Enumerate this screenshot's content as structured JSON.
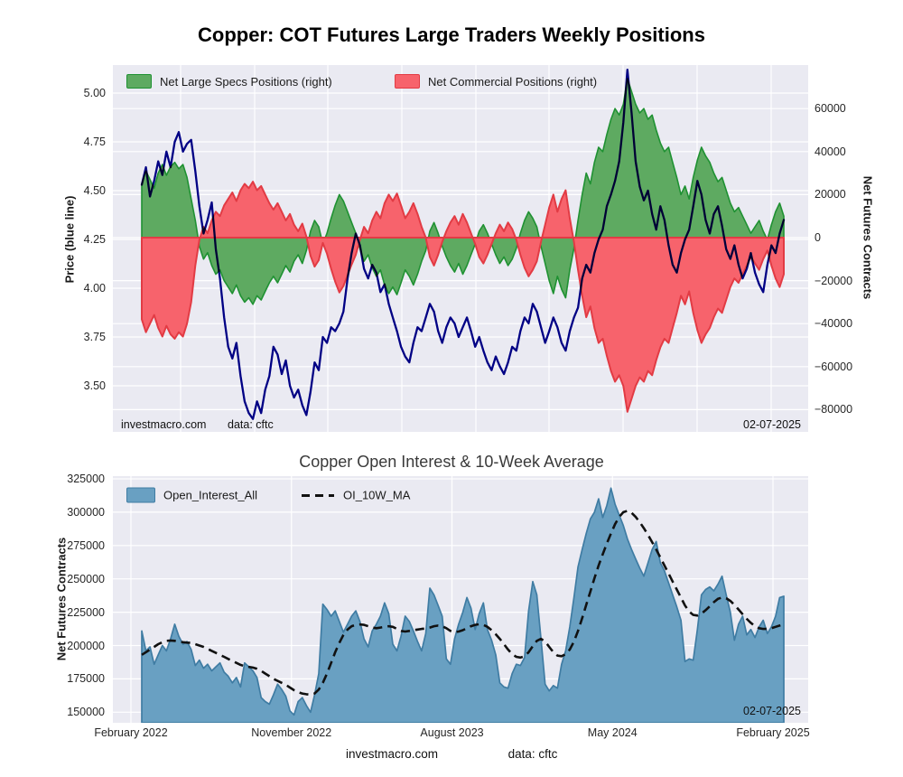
{
  "style": {
    "panel_bg": "#eaeaf2",
    "grid": "#ffffff",
    "specs_fill": "#5eaa61",
    "specs_edge": "#1f9132",
    "comms_fill": "#f7636c",
    "comms_edge": "#e23b44",
    "price_color": "#00008b",
    "oi_fill": "#69a0c2",
    "oi_edge": "#3f7ca3",
    "ma_color": "#111111"
  },
  "footer": {
    "source": "investmacro.com",
    "data": "data: cftc"
  },
  "chart_data": [
    {
      "type": "area+line",
      "title": "Copper: COT Futures Large Traders Weekly Positions",
      "x_tick_weeks": [
        0,
        39,
        78,
        117,
        156
      ],
      "n_weeks": 157,
      "grid": true,
      "legend_position": "upper-left",
      "y_left": {
        "label": "Price (blue line)",
        "ticks": [
          "5.00",
          "4.75",
          "4.50",
          "4.25",
          "4.00",
          "3.75",
          "3.50"
        ],
        "range": [
          3.31,
          5.14
        ]
      },
      "y_right": {
        "label": "Net Futures Contracts",
        "ticks": [
          "60000",
          "40000",
          "20000",
          "0",
          "−20000",
          "−40000",
          "−60000",
          "−80000"
        ],
        "range": [
          -91000,
          80000
        ]
      },
      "annotations": {
        "source": "investmacro.com",
        "data": "data: cftc",
        "date": "02-07-2025"
      },
      "series": [
        {
          "name": "Net Large Specs Positions (right)",
          "type": "area",
          "axis": "right",
          "color": "#5eaa61",
          "edge": "#1f9132",
          "values": [
            25000,
            31000,
            27000,
            23000,
            30000,
            34000,
            29000,
            33000,
            35000,
            32000,
            34000,
            28000,
            18000,
            8000,
            -4000,
            -10000,
            -7000,
            -13000,
            -17000,
            -15000,
            -20000,
            -23000,
            -26000,
            -22000,
            -27000,
            -30000,
            -28000,
            -31000,
            -27000,
            -29000,
            -25000,
            -21000,
            -18000,
            -21000,
            -17000,
            -13000,
            -16000,
            -11000,
            -8000,
            -12000,
            -6000,
            3000,
            8000,
            5000,
            -3000,
            2000,
            9000,
            15000,
            20000,
            17000,
            12000,
            7000,
            2000,
            -5000,
            -11000,
            -8000,
            -14000,
            -18000,
            -15000,
            -22000,
            -26000,
            -23000,
            -26500,
            -21000,
            -15000,
            -18000,
            -22000,
            -17000,
            -11000,
            -6000,
            3000,
            7000,
            2000,
            -4000,
            -9000,
            -13000,
            -16000,
            -12000,
            -17000,
            -13000,
            -8000,
            -3000,
            3000,
            6000,
            2000,
            -3000,
            -8000,
            -12000,
            -9000,
            -13000,
            -10000,
            -5000,
            2000,
            8000,
            12000,
            9000,
            5000,
            -4000,
            -12000,
            -20000,
            -26000,
            -18000,
            -24000,
            -28000,
            -15000,
            -5000,
            8000,
            20000,
            30000,
            25000,
            35000,
            42000,
            40000,
            48000,
            55000,
            60000,
            57000,
            62000,
            74000,
            68000,
            62000,
            58000,
            60000,
            55000,
            57000,
            50000,
            44000,
            40000,
            42000,
            35000,
            28000,
            20000,
            24000,
            18000,
            28000,
            36000,
            42000,
            38000,
            35000,
            30000,
            26000,
            28000,
            22000,
            16000,
            12000,
            14000,
            10000,
            6000,
            2000,
            5000,
            8000,
            3000,
            -1000,
            6000,
            12000,
            16000,
            10000
          ]
        },
        {
          "name": "Net Commercial Positions (right)",
          "type": "area",
          "axis": "right",
          "color": "#f7636c",
          "edge": "#e23b44",
          "values": [
            -38000,
            -44000,
            -40000,
            -36000,
            -42000,
            -46000,
            -41000,
            -45000,
            -47000,
            -44000,
            -46000,
            -40000,
            -30000,
            -13000,
            -1000,
            5000,
            2000,
            8000,
            12000,
            10000,
            15000,
            18000,
            21000,
            17000,
            22000,
            25000,
            23000,
            26000,
            22000,
            24000,
            20000,
            16000,
            13000,
            16000,
            12000,
            8000,
            11000,
            6000,
            3000,
            6500,
            500,
            -8500,
            -13500,
            -10500,
            -2500,
            -7500,
            -14500,
            -20500,
            -25500,
            -22500,
            -17500,
            -12500,
            -8000,
            -1000,
            5000,
            2000,
            8000,
            12000,
            9000,
            16000,
            20000,
            17000,
            20500,
            15000,
            9000,
            12000,
            16000,
            11000,
            5000,
            0,
            -9000,
            -13000,
            -8000,
            -2000,
            3000,
            7000,
            10000,
            6000,
            11000,
            7000,
            2000,
            -3000,
            -9000,
            -12000,
            -8000,
            -3000,
            2000,
            6000,
            3000,
            7000,
            4000,
            -1000,
            -8000,
            -14000,
            -18000,
            -15000,
            -11000,
            -2000,
            6000,
            14000,
            20000,
            12000,
            18000,
            22000,
            9000,
            -2000,
            -15000,
            -27000,
            -37000,
            -32000,
            -42000,
            -49000,
            -47000,
            -55000,
            -62000,
            -67000,
            -64000,
            -69000,
            -81000,
            -75000,
            -69000,
            -65000,
            -67000,
            -62000,
            -64000,
            -57000,
            -51000,
            -47000,
            -49000,
            -42000,
            -35000,
            -27000,
            -31000,
            -25000,
            -35000,
            -43000,
            -49000,
            -45000,
            -42000,
            -37000,
            -33000,
            -35000,
            -29000,
            -23000,
            -19000,
            -21000,
            -17000,
            -13000,
            -9000,
            -12000,
            -15000,
            -10000,
            -6000,
            -13000,
            -19000,
            -23000,
            -17000
          ]
        },
        {
          "name": "Price (blue line)",
          "type": "line",
          "axis": "left",
          "color": "#00008b",
          "values": [
            4.53,
            4.62,
            4.47,
            4.55,
            4.65,
            4.58,
            4.7,
            4.62,
            4.75,
            4.8,
            4.7,
            4.74,
            4.76,
            4.6,
            4.42,
            4.28,
            4.35,
            4.44,
            4.2,
            4.05,
            3.85,
            3.7,
            3.64,
            3.72,
            3.55,
            3.42,
            3.36,
            3.33,
            3.42,
            3.36,
            3.48,
            3.55,
            3.7,
            3.66,
            3.56,
            3.63,
            3.5,
            3.44,
            3.48,
            3.4,
            3.35,
            3.47,
            3.62,
            3.58,
            3.75,
            3.72,
            3.8,
            3.78,
            3.82,
            3.88,
            4.05,
            4.18,
            4.28,
            4.22,
            4.1,
            4.05,
            4.12,
            4.08,
            3.98,
            4.02,
            3.92,
            3.85,
            3.78,
            3.7,
            3.65,
            3.62,
            3.72,
            3.8,
            3.78,
            3.85,
            3.92,
            3.88,
            3.78,
            3.72,
            3.8,
            3.85,
            3.82,
            3.75,
            3.8,
            3.85,
            3.78,
            3.7,
            3.75,
            3.68,
            3.62,
            3.58,
            3.65,
            3.6,
            3.56,
            3.62,
            3.7,
            3.68,
            3.78,
            3.85,
            3.82,
            3.92,
            3.88,
            3.8,
            3.72,
            3.78,
            3.85,
            3.8,
            3.72,
            3.68,
            3.78,
            3.85,
            3.9,
            4.05,
            4.12,
            4.08,
            4.18,
            4.25,
            4.3,
            4.42,
            4.48,
            4.55,
            4.65,
            4.85,
            5.12,
            4.9,
            4.65,
            4.52,
            4.45,
            4.5,
            4.38,
            4.3,
            4.42,
            4.35,
            4.22,
            4.12,
            4.08,
            4.18,
            4.25,
            4.3,
            4.42,
            4.55,
            4.48,
            4.35,
            4.28,
            4.38,
            4.42,
            4.32,
            4.2,
            4.15,
            4.22,
            4.12,
            4.05,
            4.1,
            4.18,
            4.08,
            4.02,
            3.98,
            4.12,
            4.22,
            4.18,
            4.28,
            4.35
          ]
        }
      ]
    },
    {
      "type": "area+line",
      "title": "Copper Open Interest & 10-Week Average",
      "x_tick_labels": [
        "February 2022",
        "November 2022",
        "August 2023",
        "May 2024",
        "February 2025"
      ],
      "x_tick_weeks": [
        0,
        39,
        78,
        117,
        156
      ],
      "n_weeks": 157,
      "grid": true,
      "legend_position": "upper-left",
      "y_left": {
        "label": "Net Futures Contracts",
        "ticks": [
          "325000",
          "300000",
          "275000",
          "250000",
          "225000",
          "200000",
          "175000",
          "150000"
        ],
        "range": [
          142000,
          327000
        ]
      },
      "annotations": {
        "date": "02-07-2025"
      },
      "series": [
        {
          "name": "Open_Interest_All",
          "type": "area",
          "color": "#69a0c2",
          "edge": "#3f7ca3",
          "values": [
            211000,
            196000,
            199000,
            186000,
            193000,
            200000,
            196000,
            205000,
            216000,
            207000,
            201000,
            203000,
            197000,
            185000,
            189000,
            183000,
            186000,
            181000,
            184000,
            187000,
            180000,
            177000,
            172000,
            176000,
            169000,
            187000,
            184000,
            181000,
            176000,
            161000,
            158000,
            156000,
            163000,
            171000,
            167000,
            162000,
            151000,
            148000,
            158000,
            161000,
            155000,
            150000,
            163000,
            179000,
            231000,
            227000,
            222000,
            226000,
            218000,
            210000,
            216000,
            222000,
            226000,
            218000,
            205000,
            199000,
            211000,
            216000,
            222000,
            232000,
            224000,
            201000,
            196000,
            207000,
            222000,
            218000,
            211000,
            203000,
            196000,
            209000,
            243000,
            238000,
            230000,
            222000,
            190000,
            186000,
            205000,
            216000,
            225000,
            236000,
            228000,
            212000,
            224000,
            232000,
            212000,
            204000,
            193000,
            172000,
            169000,
            168000,
            179000,
            186000,
            185000,
            191000,
            226000,
            248000,
            238000,
            205000,
            171000,
            166000,
            170000,
            168000,
            186000,
            196000,
            214000,
            236000,
            259000,
            272000,
            284000,
            295000,
            300000,
            310000,
            296000,
            305000,
            318000,
            306000,
            298000,
            290000,
            280000,
            272000,
            265000,
            258000,
            252000,
            262000,
            272000,
            278000,
            262000,
            256000,
            247000,
            238000,
            229000,
            219000,
            188000,
            190000,
            189000,
            212000,
            238000,
            242000,
            244000,
            241000,
            246000,
            252000,
            238000,
            225000,
            204000,
            216000,
            222000,
            208000,
            212000,
            206000,
            214000,
            219000,
            209000,
            214000,
            222000,
            236000,
            237000
          ]
        },
        {
          "name": "OI_10W_MA",
          "type": "line",
          "style": "dashed",
          "color": "#111111",
          "values": [
            193000,
            195000,
            197000,
            199000,
            201000,
            202500,
            203500,
            203800,
            203500,
            203000,
            202500,
            202200,
            202000,
            201000,
            200000,
            199000,
            197500,
            196000,
            194500,
            193000,
            191500,
            190000,
            188500,
            187000,
            185500,
            184500,
            184000,
            183500,
            182500,
            181000,
            179000,
            177000,
            175000,
            173500,
            172000,
            170500,
            168500,
            166500,
            165000,
            164000,
            163500,
            163200,
            164000,
            167000,
            172000,
            179000,
            187000,
            195000,
            202000,
            208000,
            212000,
            214500,
            215500,
            215800,
            215500,
            214500,
            213500,
            213000,
            213500,
            214000,
            214500,
            214000,
            212500,
            211000,
            210500,
            211000,
            211500,
            212000,
            212500,
            212800,
            213500,
            214500,
            215000,
            214500,
            213000,
            211000,
            210000,
            210500,
            211500,
            213000,
            214500,
            215500,
            216000,
            215500,
            214000,
            211500,
            208500,
            205000,
            201000,
            197000,
            193500,
            191500,
            191000,
            192000,
            195000,
            199500,
            203500,
            205000,
            203000,
            199000,
            195000,
            192500,
            192000,
            193500,
            197000,
            203000,
            211000,
            220500,
            230500,
            240500,
            250500,
            260000,
            268500,
            276500,
            284000,
            291000,
            296500,
            300000,
            301000,
            299500,
            296500,
            292500,
            288000,
            283000,
            277500,
            272000,
            266000,
            260000,
            254000,
            248000,
            242000,
            236000,
            230000,
            225500,
            223000,
            222500,
            224000,
            226500,
            229500,
            232500,
            235000,
            236000,
            235500,
            233500,
            230500,
            227000,
            223500,
            220000,
            217000,
            214500,
            213000,
            212500,
            212500,
            213000,
            214000,
            215000,
            216000
          ]
        }
      ]
    }
  ]
}
